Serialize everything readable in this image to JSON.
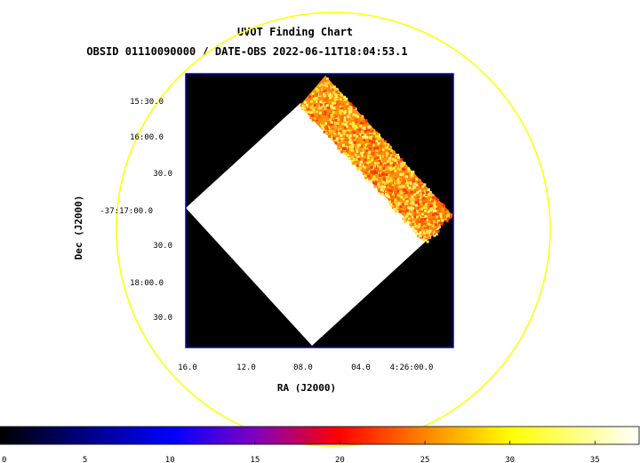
{
  "chart_data": {
    "type": "heatmap",
    "title": "UVOT Finding Chart",
    "subtitle": "OBSID 01110090000 / DATE-OBS 2022-06-11T18:04:53.1",
    "xlabel": "RA (J2000)",
    "ylabel": "Dec (J2000)",
    "x_ticks": [
      "16.0",
      "12.0",
      "08.0",
      "04.0",
      "4:26:00.0"
    ],
    "y_ticks": [
      "15:30.0",
      "16:00.0",
      "30.0",
      "-37:17:00.0",
      "30.0",
      "18:00.0",
      "30.0"
    ],
    "colorbar": {
      "ticks": [
        "0",
        "5",
        "10",
        "15",
        "20",
        "25",
        "30",
        "35"
      ],
      "range": [
        0,
        37.6
      ],
      "colormap": [
        "#000000",
        "#0000ff",
        "#ff0000",
        "#ffff00",
        "#ffffff"
      ]
    },
    "colors": {
      "frame": "#0000cc",
      "field_circle": "#ffff00",
      "background": "#000000",
      "saturated": "#ffffff",
      "noise_low": "#ff3a00",
      "noise_mid": "#ff9a00",
      "noise_high": "#ffee30"
    }
  }
}
